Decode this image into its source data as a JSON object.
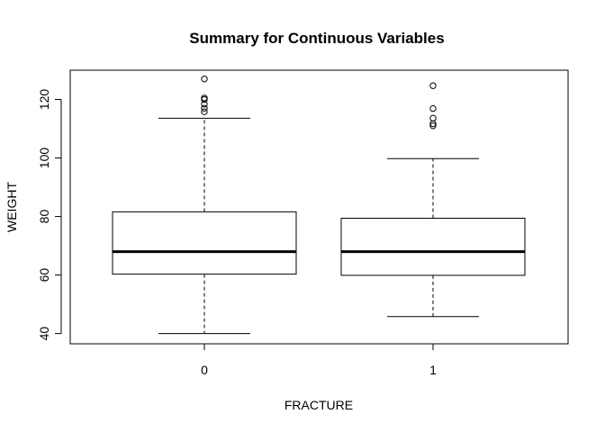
{
  "chart_data": {
    "type": "boxplot",
    "title": "Summary for Continuous Variables",
    "xlabel": "FRACTURE",
    "ylabel": "WEIGHT",
    "categories": [
      "0",
      "1"
    ],
    "ylim": [
      36.5,
      130
    ],
    "yticks": [
      40,
      60,
      80,
      100,
      120
    ],
    "grid": false,
    "legend": "none",
    "boxes": [
      {
        "category": "0",
        "whisker_low": 40,
        "q1": 60.3,
        "median": 68,
        "q3": 81.6,
        "whisker_high": 113.6,
        "outliers": [
          115.8,
          117,
          118.4,
          120,
          120.5,
          127
        ]
      },
      {
        "category": "1",
        "whisker_low": 45.8,
        "q1": 59.9,
        "median": 68,
        "q3": 79.4,
        "whisker_high": 99.8,
        "outliers": [
          111,
          111.7,
          113.6,
          116.9,
          124.7
        ]
      }
    ]
  }
}
